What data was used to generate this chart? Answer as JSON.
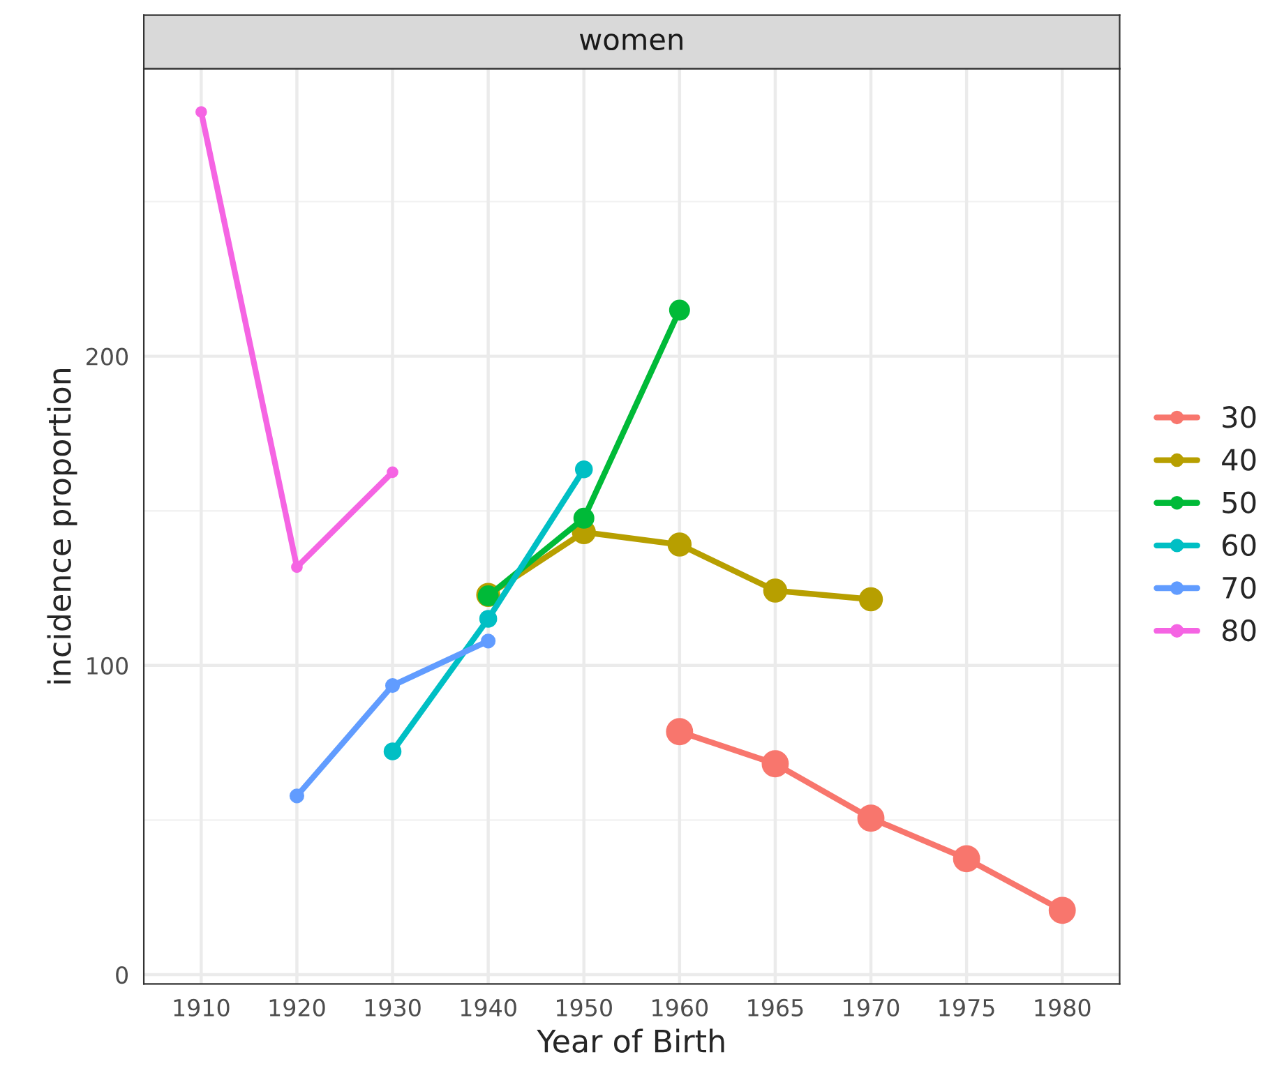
{
  "chart_data": {
    "type": "line",
    "title": "women",
    "xlabel": "Year of Birth",
    "ylabel": "incidence proportion",
    "categories": [
      "1910",
      "1920",
      "1930",
      "1940",
      "1950",
      "1960",
      "1965",
      "1970",
      "1975",
      "1980"
    ],
    "series": [
      {
        "name": "30",
        "color": "#f8766d",
        "values": [
          null,
          null,
          null,
          null,
          null,
          78.6,
          68.2,
          50.6,
          37.5,
          20.8
        ]
      },
      {
        "name": "40",
        "color": "#b79f00",
        "values": [
          null,
          null,
          null,
          122.8,
          143.1,
          139.1,
          124.2,
          121.4,
          null,
          null
        ]
      },
      {
        "name": "50",
        "color": "#00ba38",
        "values": [
          null,
          null,
          null,
          122.5,
          147.6,
          214.9,
          null,
          null,
          null,
          null
        ]
      },
      {
        "name": "60",
        "color": "#00bfc4",
        "values": [
          null,
          null,
          72.2,
          115.1,
          163.4,
          null,
          null,
          null,
          null,
          null
        ]
      },
      {
        "name": "70",
        "color": "#619cff",
        "values": [
          null,
          57.8,
          93.5,
          107.9,
          null,
          null,
          null,
          null,
          null,
          null
        ]
      },
      {
        "name": "80",
        "color": "#f564e3",
        "values": [
          279,
          131.8,
          162.5,
          null,
          null,
          null,
          null,
          null,
          null,
          null
        ]
      }
    ],
    "ylim": [
      -3,
      293
    ],
    "yticks": [
      0,
      100,
      200
    ],
    "grid": true,
    "legend": "right",
    "marker": "circle",
    "line_style": "solid"
  }
}
